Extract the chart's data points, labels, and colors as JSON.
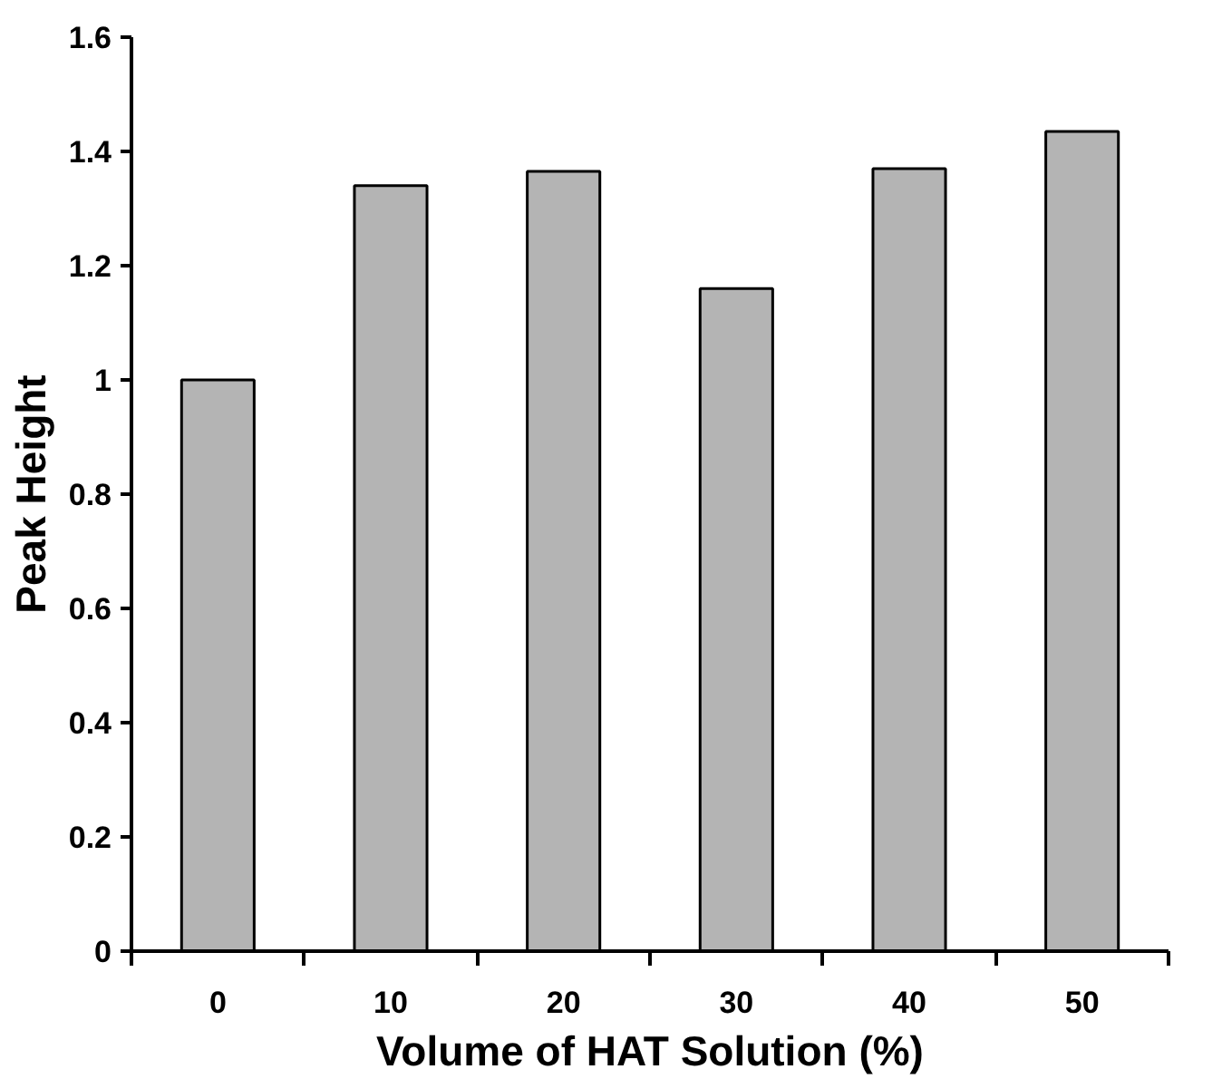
{
  "chart_data": {
    "type": "bar",
    "xlabel": "Volume of HAT Solution (%)",
    "ylabel": "Peak Height",
    "categories": [
      "0",
      "10",
      "20",
      "30",
      "40",
      "50"
    ],
    "values": [
      1.0,
      1.34,
      1.365,
      1.16,
      1.37,
      1.435
    ],
    "color": "#b4b4b4",
    "ylim": [
      0,
      1.6
    ],
    "yticks": [
      0,
      0.2,
      0.4,
      0.6,
      0.8,
      1,
      1.2,
      1.4,
      1.6
    ],
    "grid": false
  }
}
